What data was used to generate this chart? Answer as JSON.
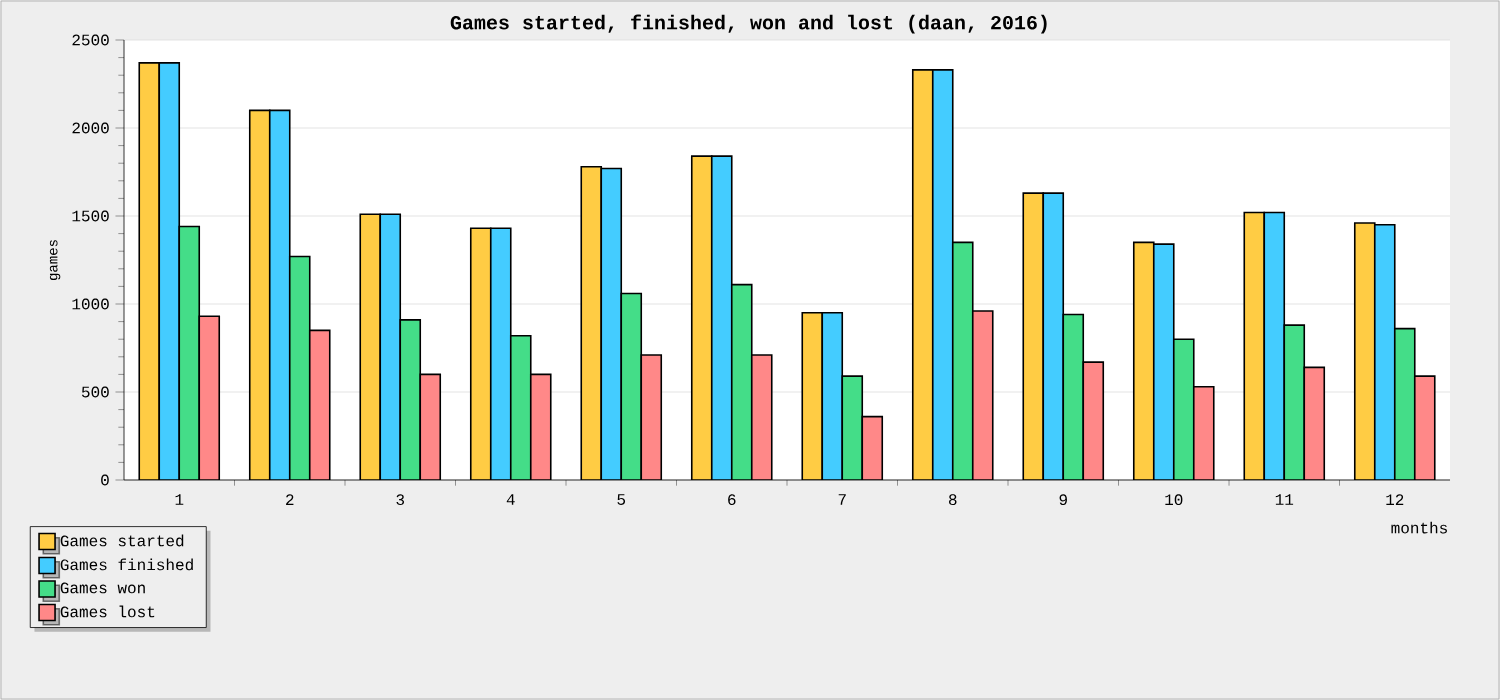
{
  "chart_data": {
    "type": "bar",
    "title": "Games started, finished, won and lost (daan, 2016)",
    "xlabel": "months",
    "ylabel": "games",
    "categories": [
      "1",
      "2",
      "3",
      "4",
      "5",
      "6",
      "7",
      "8",
      "9",
      "10",
      "11",
      "12"
    ],
    "series": [
      {
        "name": "Games started",
        "color": "#ffcc44",
        "values": [
          2370,
          2100,
          1510,
          1430,
          1780,
          1840,
          950,
          2330,
          1630,
          1350,
          1520,
          1460
        ]
      },
      {
        "name": "Games finished",
        "color": "#44ccff",
        "values": [
          2370,
          2100,
          1510,
          1430,
          1770,
          1840,
          950,
          2330,
          1630,
          1340,
          1520,
          1450
        ]
      },
      {
        "name": "Games won",
        "color": "#44dd88",
        "values": [
          1440,
          1270,
          910,
          820,
          1060,
          1110,
          590,
          1350,
          940,
          800,
          880,
          860
        ]
      },
      {
        "name": "Games lost",
        "color": "#ff8888",
        "values": [
          930,
          850,
          600,
          600,
          710,
          710,
          360,
          960,
          670,
          530,
          640,
          590
        ]
      }
    ],
    "ylim": [
      0,
      2500
    ],
    "yticks": [
      0,
      500,
      1000,
      1500,
      2000,
      2500
    ],
    "grid": "y",
    "legend": "bottom left"
  }
}
